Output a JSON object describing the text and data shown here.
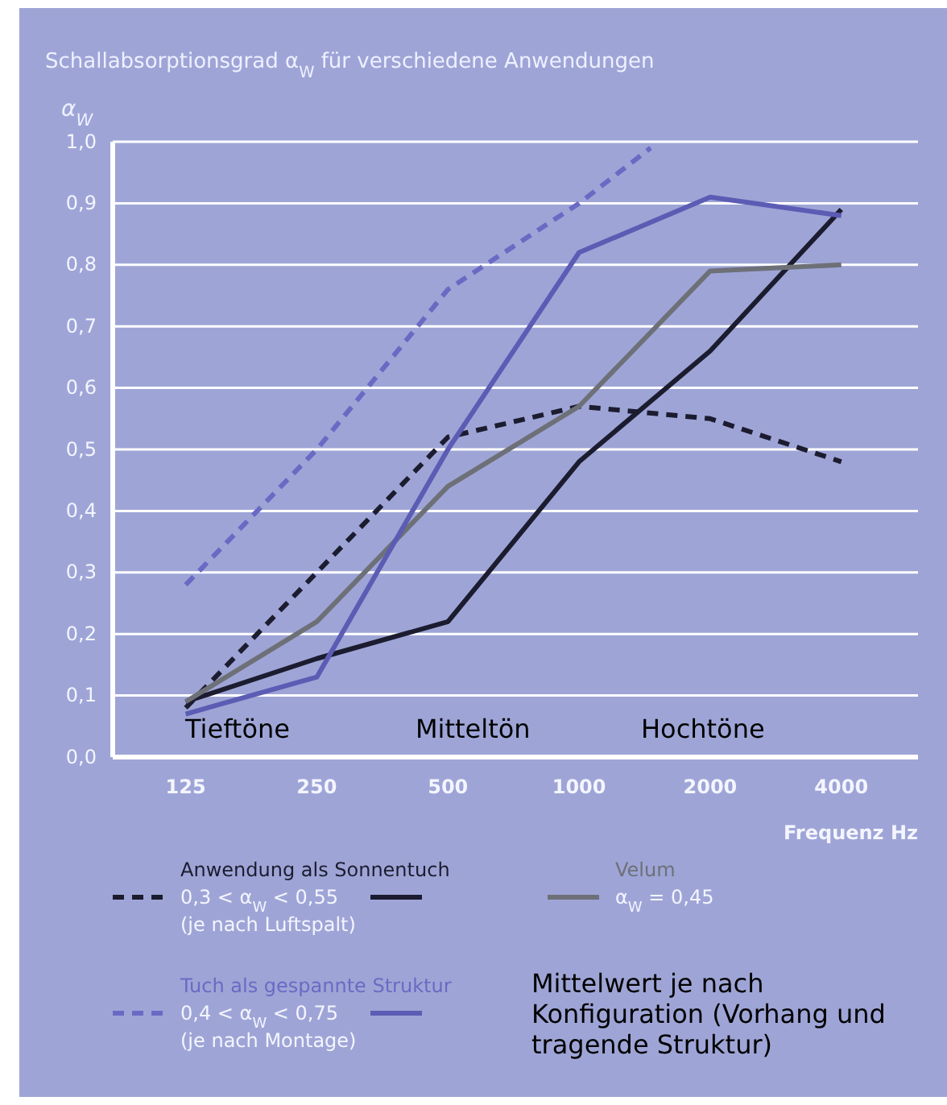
{
  "chart_data": {
    "type": "line",
    "title": "Schallabsorptionsgrad α$_{W}$ für verschiedene Anwendungen",
    "ylabel": "α$_{W}$",
    "xlabel": "Frequenz Hz",
    "log": "x",
    "xlim": [
      85,
      6000
    ],
    "xticks": [
      125,
      250,
      500,
      1000,
      2000,
      4000
    ],
    "ylim": [
      0,
      1
    ],
    "yticks": [
      {
        "value": 0,
        "label": "0,0"
      },
      {
        "value": 0.1,
        "label": "0,1"
      },
      {
        "value": 0.2,
        "label": "0,2"
      },
      {
        "value": 0.3,
        "label": "0,3"
      },
      {
        "value": 0.4,
        "label": "0,4"
      },
      {
        "value": 0.5,
        "label": "0,5"
      },
      {
        "value": 0.6,
        "label": "0,6"
      },
      {
        "value": 0.7,
        "label": "0,7"
      },
      {
        "value": 0.8,
        "label": "0,8"
      },
      {
        "value": 0.9,
        "label": "0,9"
      },
      {
        "value": 1,
        "label": "1,0"
      }
    ],
    "grid": "y",
    "legend": "bottom",
    "marker": "none",
    "x": [
      125,
      250,
      500,
      1000,
      2000,
      4000
    ],
    "series": [
      {
        "name": "Anwendung als Sonnentuch\n0,3 < α$_{W}$ < 0,55\n(je nach Luftspalt)",
        "color": "#1c1c30",
        "line_style": "dashed",
        "values": [
          0.08,
          0.3,
          0.52,
          0.57,
          0.55,
          0.48
        ]
      },
      {
        "color": "#1c1c30",
        "line_style": "solid",
        "values": [
          0.09,
          0.16,
          0.22,
          0.48,
          0.66,
          0.89
        ]
      },
      {
        "name": "Velum\nα$_{W}$ = 0,45",
        "color": "#6e7078",
        "line_style": "solid",
        "values": [
          0.09,
          0.22,
          0.44,
          0.57,
          0.79,
          0.8
        ]
      },
      {
        "name": "Tuch als gespannte Struktur\n0,4 < α$_{W}$ < 0,75\n(je nach Montage)",
        "color": "#6a6ac4",
        "line_style": "dashed",
        "x": [
          125,
          250,
          500,
          1000,
          1460
        ],
        "values": [
          0.28,
          0.5,
          0.76,
          0.9,
          0.99
        ]
      },
      {
        "color": "#5c5cb4",
        "line_style": "solid",
        "values": [
          0.07,
          0.13,
          0.5,
          0.82,
          0.91,
          0.88
        ]
      }
    ],
    "annotations": [
      "Tieftöne",
      "Mitteltön",
      "Hochtöne",
      "Mittelwert je nach\nKonfiguration (Vorhang und\ntragende Struktur)"
    ]
  }
}
